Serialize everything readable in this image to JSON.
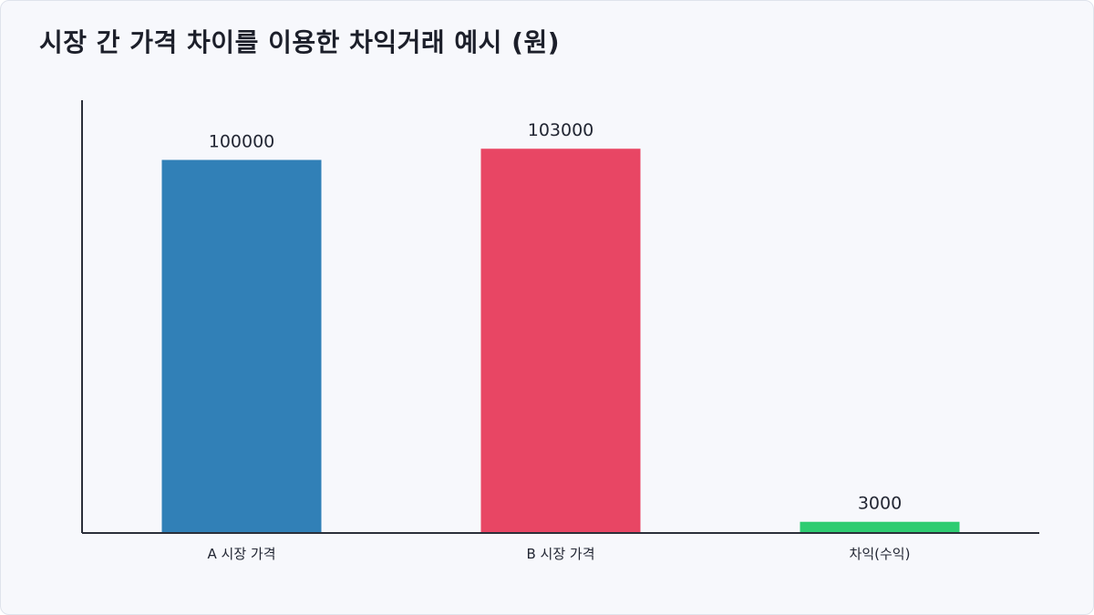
{
  "page": {
    "title": "시장 간 가격 차이를 이용한 차익거래 예시 (원)"
  },
  "chart_data": {
    "type": "bar",
    "title": "시장 간 가격 차이를 이용한 차익거래 예시 (원)",
    "categories": [
      "A 시장 가격",
      "B 시장 가격",
      "차익(수익)"
    ],
    "values": [
      100000,
      103000,
      3000
    ],
    "colors": [
      "#3180b7",
      "#e84664",
      "#2ecc71"
    ],
    "data_labels": [
      "100000",
      "103000",
      "3000"
    ],
    "xlabel": "",
    "ylabel": "",
    "ylim": [
      0,
      116000
    ],
    "grid": false,
    "legend": "none",
    "axis_color": "#2b2f3a"
  }
}
